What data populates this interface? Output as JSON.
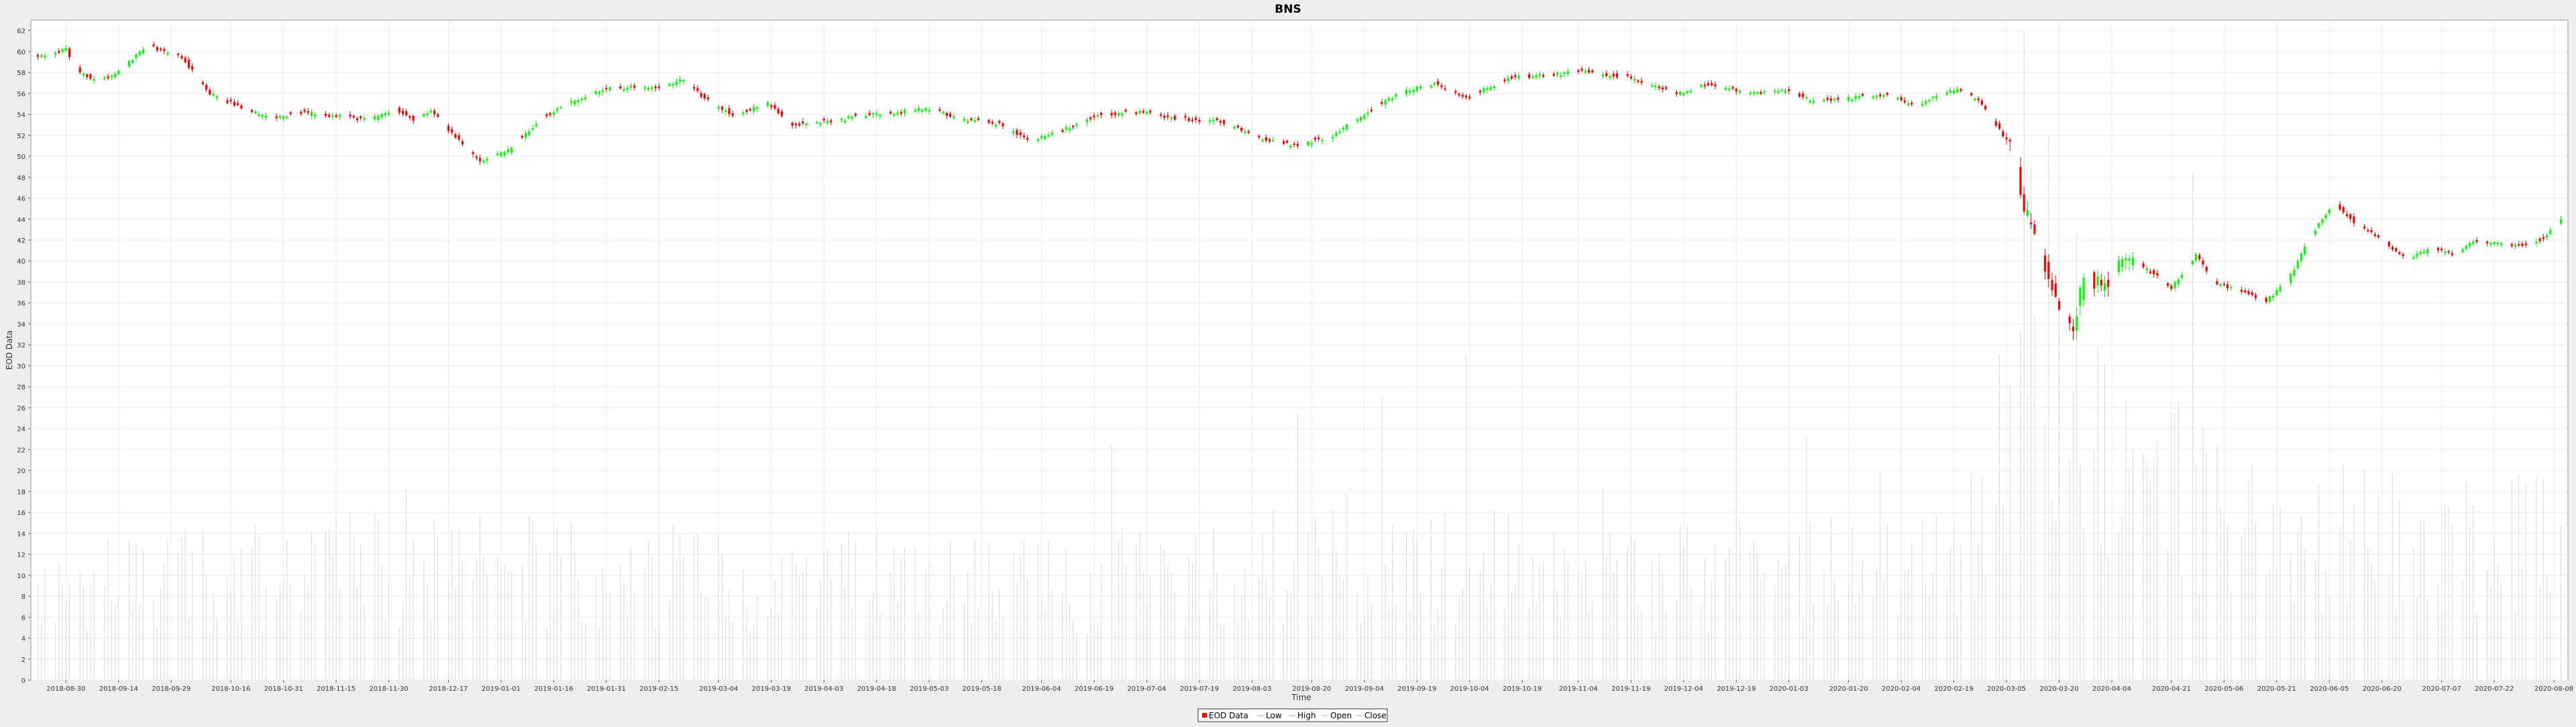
{
  "chart_data": {
    "type": "candlestick",
    "title": "BNS",
    "xlabel": "Time",
    "ylabel": "EOD Data",
    "ylim": [
      0,
      63
    ],
    "y_ticks": [
      0,
      2,
      4,
      6,
      8,
      10,
      12,
      14,
      16,
      18,
      20,
      22,
      24,
      26,
      28,
      30,
      32,
      34,
      36,
      38,
      40,
      42,
      44,
      46,
      48,
      50,
      52,
      54,
      56,
      58,
      60,
      62
    ],
    "x_start": "2018-08-20",
    "x_end": "2020-08-12",
    "x_ticks": [
      "2018-08-30",
      "2018-09-14",
      "2018-09-29",
      "2018-10-16",
      "2018-10-31",
      "2018-11-15",
      "2018-11-30",
      "2018-12-17",
      "2019-01-01",
      "2019-01-16",
      "2019-01-31",
      "2019-02-15",
      "2019-03-04",
      "2019-03-19",
      "2019-04-03",
      "2019-04-18",
      "2019-05-03",
      "2019-05-18",
      "2019-06-04",
      "2019-06-19",
      "2019-07-04",
      "2019-07-19",
      "2019-08-03",
      "2019-08-20",
      "2019-09-04",
      "2019-09-19",
      "2019-10-04",
      "2019-10-19",
      "2019-11-04",
      "2019-11-19",
      "2019-12-04",
      "2019-12-19",
      "2020-01-03",
      "2020-01-20",
      "2020-02-04",
      "2020-02-19",
      "2020-03-05",
      "2020-03-20",
      "2020-04-04",
      "2020-04-21",
      "2020-05-06",
      "2020-05-21",
      "2020-06-05",
      "2020-06-20",
      "2020-07-07",
      "2020-07-22",
      "2020-08-08"
    ],
    "price_anchors": [
      [
        "2018-08-22",
        59.5
      ],
      [
        "2018-08-30",
        60.2
      ],
      [
        "2018-09-03",
        58.0
      ],
      [
        "2018-09-08",
        57.2
      ],
      [
        "2018-09-14",
        58.0
      ],
      [
        "2018-09-22",
        60.6
      ],
      [
        "2018-10-02",
        59.5
      ],
      [
        "2018-10-10",
        56.0
      ],
      [
        "2018-10-20",
        54.5
      ],
      [
        "2018-10-28",
        53.5
      ],
      [
        "2018-11-03",
        54.2
      ],
      [
        "2018-11-15",
        53.8
      ],
      [
        "2018-11-25",
        53.5
      ],
      [
        "2018-12-02",
        54.5
      ],
      [
        "2018-12-07",
        53.5
      ],
      [
        "2018-12-12",
        54.3
      ],
      [
        "2018-12-20",
        51.5
      ],
      [
        "2018-12-26",
        49.5
      ],
      [
        "2019-01-03",
        50.5
      ],
      [
        "2019-01-12",
        53.5
      ],
      [
        "2019-01-20",
        55.0
      ],
      [
        "2019-01-31",
        56.5
      ],
      [
        "2019-02-08",
        56.6
      ],
      [
        "2019-02-15",
        56.5
      ],
      [
        "2019-02-22",
        57.3
      ],
      [
        "2019-02-28",
        55.5
      ],
      [
        "2019-03-08",
        54.0
      ],
      [
        "2019-03-18",
        55.0
      ],
      [
        "2019-03-25",
        53.0
      ],
      [
        "2019-04-05",
        53.3
      ],
      [
        "2019-04-15",
        54.0
      ],
      [
        "2019-04-24",
        54.2
      ],
      [
        "2019-05-03",
        54.6
      ],
      [
        "2019-05-12",
        53.5
      ],
      [
        "2019-05-22",
        53.2
      ],
      [
        "2019-06-01",
        51.5
      ],
      [
        "2019-06-10",
        52.5
      ],
      [
        "2019-06-20",
        54.0
      ],
      [
        "2019-07-02",
        54.2
      ],
      [
        "2019-07-12",
        53.6
      ],
      [
        "2019-07-25",
        53.3
      ],
      [
        "2019-08-05",
        51.8
      ],
      [
        "2019-08-15",
        51.0
      ],
      [
        "2019-08-25",
        51.8
      ],
      [
        "2019-09-04",
        54.0
      ],
      [
        "2019-09-14",
        56.0
      ],
      [
        "2019-09-24",
        57.0
      ],
      [
        "2019-10-03",
        55.5
      ],
      [
        "2019-10-15",
        57.5
      ],
      [
        "2019-10-28",
        57.8
      ],
      [
        "2019-11-05",
        58.2
      ],
      [
        "2019-11-18",
        57.5
      ],
      [
        "2019-12-02",
        56.0
      ],
      [
        "2019-12-10",
        56.8
      ],
      [
        "2019-12-25",
        56.0
      ],
      [
        "2020-01-02",
        56.4
      ],
      [
        "2020-01-10",
        55.3
      ],
      [
        "2020-01-22",
        55.6
      ],
      [
        "2020-02-01",
        55.8
      ],
      [
        "2020-02-08",
        54.8
      ],
      [
        "2020-02-14",
        55.9
      ],
      [
        "2020-02-21",
        56.3
      ],
      [
        "2020-02-26",
        55.3
      ],
      [
        "2020-03-02",
        53.0
      ],
      [
        "2020-03-07",
        50.5
      ],
      [
        "2020-03-10",
        45.0
      ],
      [
        "2020-03-13",
        42.5
      ],
      [
        "2020-03-17",
        38.5
      ],
      [
        "2020-03-21",
        35.0
      ],
      [
        "2020-03-24",
        33.5
      ],
      [
        "2020-03-27",
        38.5
      ],
      [
        "2020-04-02",
        37.5
      ],
      [
        "2020-04-08",
        40.5
      ],
      [
        "2020-04-15",
        39.0
      ],
      [
        "2020-04-21",
        37.5
      ],
      [
        "2020-04-28",
        40.5
      ],
      [
        "2020-05-04",
        37.8
      ],
      [
        "2020-05-11",
        37.2
      ],
      [
        "2020-05-18",
        36.2
      ],
      [
        "2020-05-24",
        38.0
      ],
      [
        "2020-05-30",
        42.0
      ],
      [
        "2020-06-06",
        45.5
      ],
      [
        "2020-06-13",
        43.5
      ],
      [
        "2020-06-20",
        42.0
      ],
      [
        "2020-06-27",
        40.2
      ],
      [
        "2020-07-04",
        41.2
      ],
      [
        "2020-07-11",
        40.6
      ],
      [
        "2020-07-16",
        41.8
      ],
      [
        "2020-07-24",
        41.6
      ],
      [
        "2020-07-31",
        41.5
      ],
      [
        "2020-08-05",
        42.2
      ],
      [
        "2020-08-10",
        44.0
      ]
    ],
    "volume_anchors": [
      [
        "2018-08-20",
        9
      ],
      [
        "2018-12-01",
        11
      ],
      [
        "2019-03-01",
        10
      ],
      [
        "2019-06-01",
        9
      ],
      [
        "2019-09-01",
        12
      ],
      [
        "2019-12-01",
        10
      ],
      [
        "2020-02-20",
        11
      ],
      [
        "2020-03-15",
        36
      ],
      [
        "2020-04-10",
        20
      ],
      [
        "2020-05-15",
        14
      ],
      [
        "2020-08-10",
        13
      ]
    ],
    "series": [
      {
        "name": "EOD Data"
      },
      {
        "name": "Low"
      },
      {
        "name": "High"
      },
      {
        "name": "Open"
      },
      {
        "name": "Close"
      }
    ],
    "legend_position": "bottom-center",
    "grid": true,
    "colors": {
      "up": "#00ff00",
      "down": "#ff0000",
      "volume": "#d9d9d9",
      "grid": "#ebebeb",
      "background": "#ffffff"
    }
  }
}
